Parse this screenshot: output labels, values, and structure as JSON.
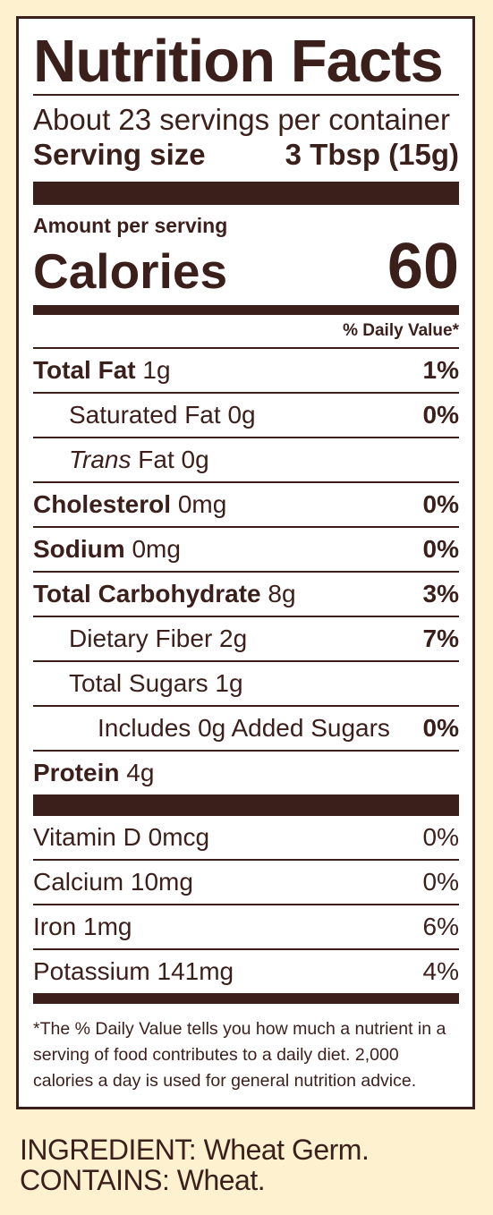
{
  "label": {
    "title": "Nutrition Facts",
    "servings_per_container": "About 23 servings per container",
    "serving_size_label": "Serving size",
    "serving_size_value": "3 Tbsp (15g)",
    "amount_per_serving": "Amount per serving",
    "calories_label": "Calories",
    "calories_value": "60",
    "daily_value_header": "% Daily Value*",
    "nutrients": [
      {
        "name": "Total Fat",
        "amount": "1g",
        "dv": "1%"
      },
      {
        "name": "Saturated Fat",
        "amount": "0g",
        "dv": "0%"
      },
      {
        "name": "Trans",
        "name_rest": "Fat",
        "amount": "0g",
        "dv": ""
      },
      {
        "name": "Cholesterol",
        "amount": "0mg",
        "dv": "0%"
      },
      {
        "name": "Sodium",
        "amount": "0mg",
        "dv": "0%"
      },
      {
        "name": "Total Carbohydrate",
        "amount": "8g",
        "dv": "3%"
      },
      {
        "name": "Dietary Fiber",
        "amount": "2g",
        "dv": "7%"
      },
      {
        "name": "Total Sugars",
        "amount": "1g",
        "dv": ""
      },
      {
        "name": "Includes 0g Added Sugars",
        "amount": "",
        "dv": "0%"
      },
      {
        "name": "Protein",
        "amount": "4g",
        "dv": ""
      }
    ],
    "vitamins": [
      {
        "name": "Vitamin D 0mcg",
        "dv": "0%"
      },
      {
        "name": "Calcium 10mg",
        "dv": "0%"
      },
      {
        "name": "Iron 1mg",
        "dv": "6%"
      },
      {
        "name": "Potassium 141mg",
        "dv": "4%"
      }
    ],
    "footnote": "*The % Daily Value tells you how much a nutrient in a serving of food contributes to a daily diet. 2,000 calories a day is used for general nutrition advice."
  },
  "ingredients": {
    "line1": "INGREDIENT: Wheat Germ.",
    "line2": "CONTAINS: Wheat."
  }
}
